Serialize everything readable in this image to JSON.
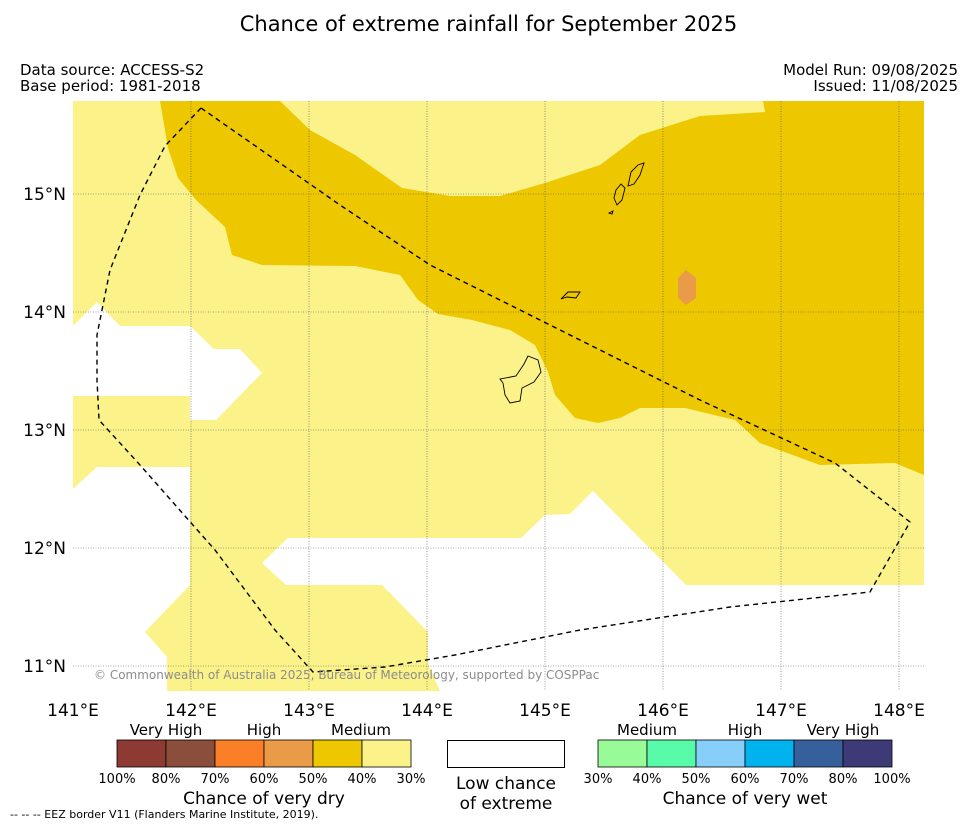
{
  "title": "Chance of extreme rainfall for September 2025",
  "header": {
    "data_source": "Data source: ACCESS-S2",
    "base_period": "Base period: 1981-2018",
    "model_run": "Model Run: 09/08/2025",
    "issued": "Issued: 11/08/2025"
  },
  "map": {
    "lon_labels": [
      "141°E",
      "142°E",
      "143°E",
      "144°E",
      "145°E",
      "146°E",
      "147°E",
      "148°E"
    ],
    "lat_labels": [
      "15°N",
      "14°N",
      "13°N",
      "12°N",
      "11°N"
    ],
    "lon_range": [
      141,
      148.2
    ],
    "lat_range": [
      10.8,
      15.8
    ],
    "copyright": "© Commonwealth of Australia 2025, Bureau of Meteorology, supported by COSPPac",
    "colors": {
      "medium_dry": "#edc700",
      "low_dry": "#fbf28a",
      "high_dry": "#ea9b48",
      "none": "#ffffff"
    }
  },
  "legend": {
    "dry": {
      "categories": [
        "Very High",
        "High",
        "Medium"
      ],
      "title": "Chance of very dry",
      "ticks": [
        "100%",
        "80%",
        "70%",
        "60%",
        "50%",
        "40%",
        "30%"
      ],
      "colors": [
        "#8c3a32",
        "#8b4e3a",
        "#fb7f26",
        "#ea9b48",
        "#edc700",
        "#fbf28a"
      ]
    },
    "low": {
      "label": "Low chance of extreme"
    },
    "wet": {
      "categories": [
        "Medium",
        "High",
        "Very High"
      ],
      "title": "Chance of very wet",
      "ticks": [
        "30%",
        "40%",
        "50%",
        "60%",
        "70%",
        "80%",
        "100%"
      ],
      "colors": [
        "#98fb98",
        "#58fba8",
        "#87cefa",
        "#00b2ee",
        "#36609c",
        "#3e3a78"
      ]
    }
  },
  "footer": {
    "eez": "--  --  -- EEZ border V11 (Flanders Marine Institute, 2019)."
  }
}
